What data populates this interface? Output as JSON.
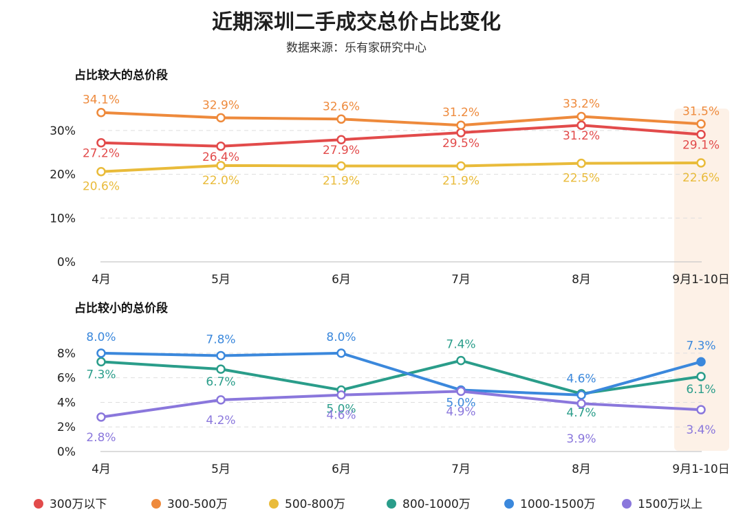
{
  "title": "近期深圳二手成交总价占比变化",
  "subtitle": "数据来源：乐有家研究中心",
  "chart_data": [
    {
      "type": "line",
      "title": "占比较大的总价段",
      "categories": [
        "4月",
        "5月",
        "6月",
        "7月",
        "8月",
        "9月1-10日"
      ],
      "ylim": [
        0,
        35
      ],
      "yticks": [
        "0%",
        "10%",
        "20%",
        "30%"
      ],
      "grid": true,
      "highlight_category": "9月1-10日",
      "series": [
        {
          "name": "300万以下",
          "color": "#e24b4b",
          "values": [
            27.2,
            26.4,
            27.9,
            29.5,
            31.2,
            29.1
          ],
          "labels": [
            "27.2%",
            "26.4%",
            "27.9%",
            "29.5%",
            "31.2%",
            "29.1%"
          ]
        },
        {
          "name": "300-500万",
          "color": "#ee8a3c",
          "values": [
            34.1,
            32.9,
            32.6,
            31.2,
            33.2,
            31.5
          ],
          "labels": [
            "34.1%",
            "32.9%",
            "32.6%",
            "31.2%",
            "33.2%",
            "31.5%"
          ]
        },
        {
          "name": "500-800万",
          "color": "#e9bb3a",
          "values": [
            20.6,
            22.0,
            21.9,
            21.9,
            22.5,
            22.6
          ],
          "labels": [
            "20.6%",
            "22.0%",
            "21.9%",
            "21.9%",
            "22.5%",
            "22.6%"
          ]
        }
      ]
    },
    {
      "type": "line",
      "title": "占比较小的总价段",
      "categories": [
        "4月",
        "5月",
        "6月",
        "7月",
        "8月",
        "9月1-10日"
      ],
      "ylim": [
        0,
        9
      ],
      "yticks": [
        "0%",
        "2%",
        "4%",
        "6%",
        "8%"
      ],
      "grid": true,
      "highlight_category": "9月1-10日",
      "series": [
        {
          "name": "800-1000万",
          "color": "#2a9d8a",
          "values": [
            7.3,
            6.7,
            5.0,
            7.4,
            4.7,
            6.1
          ],
          "labels": [
            "7.3%",
            "6.7%",
            "5.0%",
            "7.4%",
            "4.7%",
            "6.1%"
          ]
        },
        {
          "name": "1000-1500万",
          "color": "#3b88dc",
          "values": [
            8.0,
            7.8,
            8.0,
            5.0,
            4.6,
            7.3
          ],
          "labels": [
            "8.0%",
            "7.8%",
            "8.0%",
            "5.0%",
            "4.6%",
            "7.3%"
          ]
        },
        {
          "name": "1500万以上",
          "color": "#8a77dc",
          "values": [
            2.8,
            4.2,
            4.6,
            4.9,
            3.9,
            3.4
          ],
          "labels": [
            "2.8%",
            "4.2%",
            "4.6%",
            "4.9%",
            "3.9%",
            "3.4%"
          ]
        }
      ]
    }
  ],
  "legend": [
    {
      "name": "300万以下",
      "color": "#e24b4b"
    },
    {
      "name": "300-500万",
      "color": "#ee8a3c"
    },
    {
      "name": "500-800万",
      "color": "#e9bb3a"
    },
    {
      "name": "800-1000万",
      "color": "#2a9d8a"
    },
    {
      "name": "1000-1500万",
      "color": "#3b88dc"
    },
    {
      "name": "1500万以上",
      "color": "#8a77dc"
    }
  ]
}
